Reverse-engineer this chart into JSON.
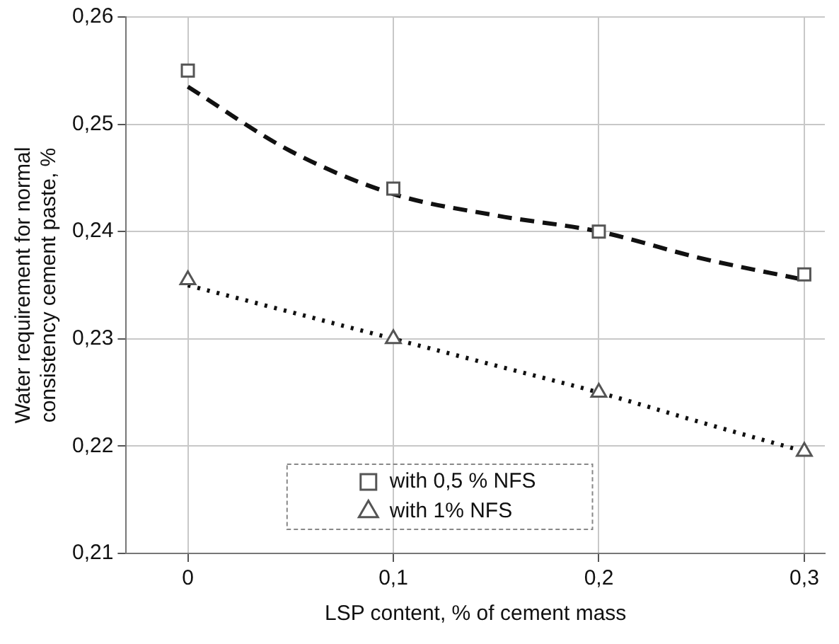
{
  "chart_data": {
    "type": "scatter",
    "xlabel": "LSP content, % of cement mass",
    "ylabel": "Water requirement for normal consistency cement paste, %",
    "xlim": [
      -0.03,
      0.31
    ],
    "xticks": [
      {
        "value": 0,
        "label": "0"
      },
      {
        "value": 0.1,
        "label": "0,1"
      },
      {
        "value": 0.2,
        "label": "0,2"
      },
      {
        "value": 0.3,
        "label": "0,3"
      }
    ],
    "ylim": [
      0.21,
      0.26
    ],
    "yticks": [
      {
        "value": 0.21,
        "label": "0,21"
      },
      {
        "value": 0.22,
        "label": "0,22"
      },
      {
        "value": 0.23,
        "label": "0,23"
      },
      {
        "value": 0.24,
        "label": "0,24"
      },
      {
        "value": 0.25,
        "label": "0,25"
      },
      {
        "value": 0.26,
        "label": "0,26"
      }
    ],
    "grid": true,
    "legend": "bottom",
    "series": [
      {
        "name": "with 0,5 % NFS",
        "type": "scatter",
        "marker": "square",
        "color": "#555555",
        "x": [
          0,
          0.1,
          0.2,
          0.3
        ],
        "values": [
          0.255,
          0.244,
          0.24,
          0.236
        ]
      },
      {
        "name": "with 1% NFS",
        "type": "scatter",
        "marker": "triangle",
        "color": "#555555",
        "x": [
          0,
          0.1,
          0.2,
          0.3
        ],
        "values": [
          0.2355,
          0.23,
          0.225,
          0.2195
        ]
      },
      {
        "type": "line",
        "line_style": "dashed",
        "marker": "none",
        "color": "#111111",
        "x": [
          0,
          0.05,
          0.1,
          0.15,
          0.2,
          0.25,
          0.3
        ],
        "values": [
          0.2535,
          0.2475,
          0.2435,
          0.2415,
          0.24,
          0.2375,
          0.2355
        ]
      },
      {
        "type": "line",
        "line_style": "dotted",
        "marker": "none",
        "color": "#111111",
        "x": [
          0,
          0.05,
          0.1,
          0.15,
          0.2,
          0.25,
          0.3
        ],
        "values": [
          0.235,
          0.2325,
          0.23,
          0.2275,
          0.225,
          0.2222,
          0.2195
        ]
      }
    ]
  }
}
